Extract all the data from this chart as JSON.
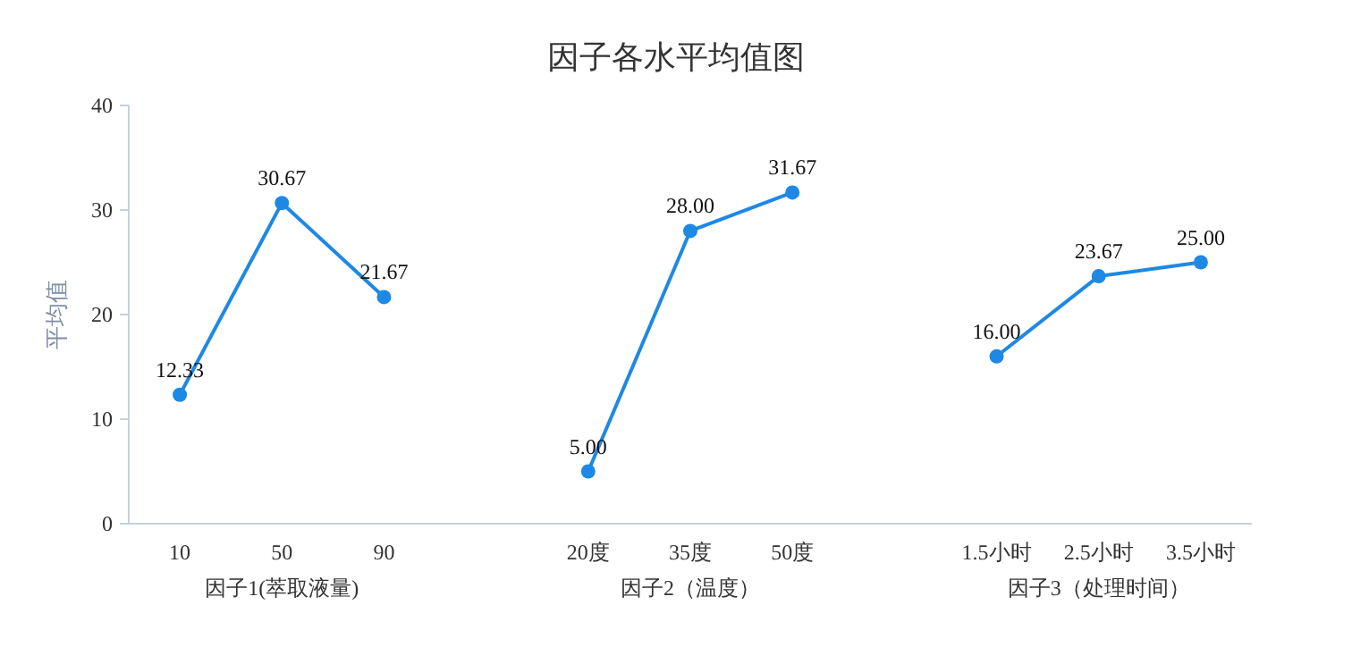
{
  "chart_data": {
    "type": "line",
    "title": "因子各水平均值图",
    "ylabel": "平均值",
    "categories": [
      "10",
      "50",
      "90",
      null,
      "20度",
      "35度",
      "50度",
      null,
      "1.5小时",
      "2.5小时",
      "3.5小时"
    ],
    "series": [
      {
        "color": "#1e88e5",
        "values": [
          12.33,
          30.67,
          21.67,
          null,
          5.0,
          28.0,
          31.67,
          null,
          16.0,
          23.67,
          25.0
        ],
        "value_labels": [
          "12.33",
          "30.67",
          "21.67",
          null,
          "5.00",
          "28.00",
          "31.67",
          null,
          "16.00",
          "23.67",
          "25.00"
        ]
      }
    ],
    "ylim": [
      0,
      40
    ],
    "yticks": [
      0,
      10,
      20,
      30,
      40
    ],
    "marker": "circle",
    "line_style": "solid",
    "grid": false,
    "annotations": [
      "因子1(萃取液量)",
      "因子2（温度）",
      "因子3（处理时间）"
    ]
  }
}
